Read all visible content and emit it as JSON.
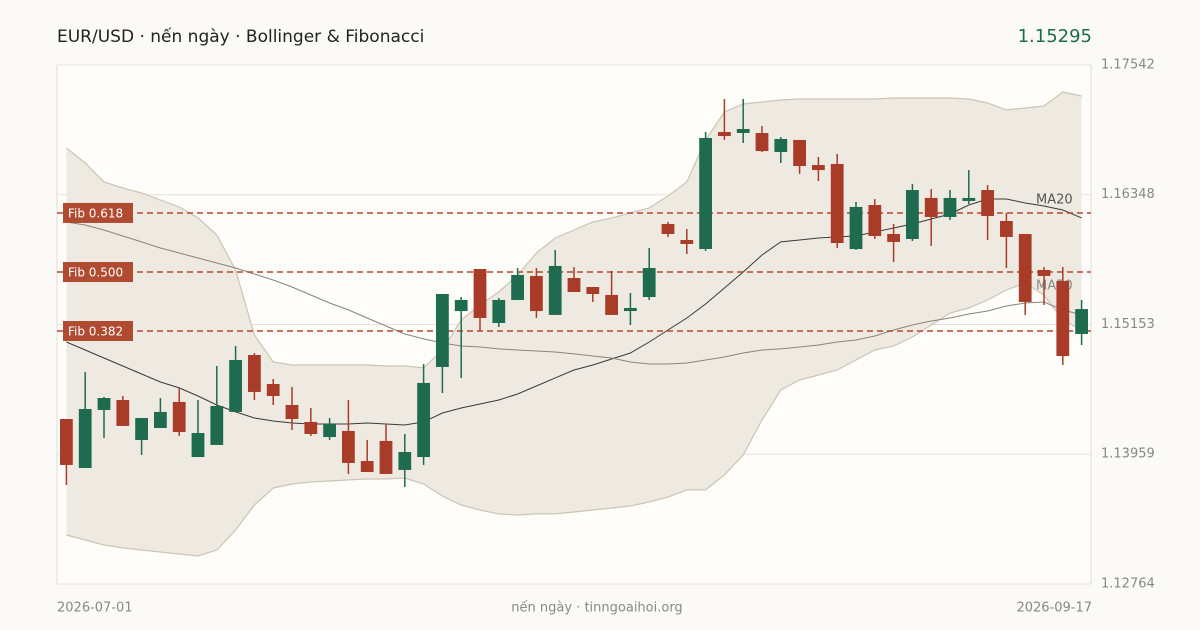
{
  "chart_data": {
    "type": "candlestick",
    "title": "EUR/USD · nến ngày · Bollinger & Fibonacci",
    "last_price": "1.15295",
    "source": "nến ngày · tinngoaihoi.org",
    "categories": [
      "2026-07-01",
      null,
      null,
      null,
      null,
      null,
      null,
      null,
      null,
      null,
      null,
      null,
      null,
      null,
      null,
      null,
      null,
      null,
      null,
      null,
      null,
      null,
      null,
      null,
      null,
      null,
      null,
      null,
      null,
      null,
      null,
      null,
      null,
      null,
      null,
      null,
      null,
      null,
      null,
      null,
      null,
      null,
      null,
      null,
      null,
      null,
      null,
      null,
      null,
      null,
      null,
      null,
      null,
      null,
      "2026-09-17"
    ],
    "open": [
      1.14283,
      1.13832,
      1.14366,
      1.14458,
      1.1409,
      1.142,
      1.1444,
      1.13933,
      1.14044,
      1.14348,
      1.14872,
      1.14605,
      1.14412,
      1.14256,
      1.14117,
      1.14173,
      1.13896,
      1.14081,
      1.13814,
      1.13933,
      1.14762,
      1.15277,
      1.15664,
      1.15167,
      1.15379,
      1.156,
      1.15241,
      1.15581,
      1.15498,
      1.15425,
      1.15277,
      1.15406,
      1.16078,
      1.15931,
      1.15848,
      1.16925,
      1.16916,
      1.16916,
      1.16741,
      1.16852,
      1.16621,
      1.16631,
      1.15848,
      1.16253,
      1.15986,
      1.1594,
      1.16318,
      1.16143,
      1.1629,
      1.16391,
      1.16106,
      1.15986,
      1.15655,
      1.15554,
      1.15066
    ],
    "high": [
      1.14283,
      1.14716,
      1.14486,
      1.14495,
      1.14292,
      1.14476,
      1.14569,
      1.14458,
      1.14771,
      1.14955,
      1.14891,
      1.14651,
      1.14578,
      1.14384,
      1.14292,
      1.14458,
      1.1409,
      1.14237,
      1.14145,
      1.14789,
      1.15434,
      1.15406,
      1.15664,
      1.15397,
      1.15673,
      1.15673,
      1.15839,
      1.15682,
      1.15498,
      1.15646,
      1.15443,
      1.15857,
      1.16097,
      1.16032,
      1.16925,
      1.17229,
      1.17229,
      1.1698,
      1.16879,
      1.16852,
      1.16695,
      1.16723,
      1.16281,
      1.16308,
      1.16078,
      1.16447,
      1.164,
      1.16391,
      1.16575,
      1.16437,
      1.1618,
      1.15986,
      1.15682,
      1.15682,
      1.15379
    ],
    "low": [
      1.13676,
      1.13832,
      1.14108,
      1.14219,
      1.13952,
      1.142,
      1.14127,
      1.13933,
      1.14044,
      1.14348,
      1.14458,
      1.14412,
      1.14182,
      1.14127,
      1.1409,
      1.13777,
      1.13795,
      1.13777,
      1.13657,
      1.1386,
      1.14522,
      1.1466,
      1.15093,
      1.1513,
      1.15379,
      1.15213,
      1.15241,
      1.15452,
      1.1536,
      1.15241,
      1.15148,
      1.15379,
      1.15959,
      1.15802,
      1.1583,
      1.16852,
      1.16824,
      1.16741,
      1.1664,
      1.16539,
      1.16474,
      1.15857,
      1.15839,
      1.1594,
      1.15728,
      1.15922,
      1.15876,
      1.16115,
      1.16262,
      1.15931,
      1.15673,
      1.15241,
      1.15333,
      1.1478,
      1.14964
    ],
    "close": [
      1.1386,
      1.14375,
      1.14476,
      1.14219,
      1.14292,
      1.14348,
      1.14163,
      1.14154,
      1.14403,
      1.14826,
      1.14532,
      1.14495,
      1.14283,
      1.14145,
      1.14237,
      1.13878,
      1.13795,
      1.13777,
      1.13979,
      1.14615,
      1.15434,
      1.15379,
      1.15213,
      1.15379,
      1.15609,
      1.15277,
      1.15692,
      1.15452,
      1.15434,
      1.15241,
      1.15305,
      1.15673,
      1.15986,
      1.15894,
      1.1687,
      1.16888,
      1.16953,
      1.1675,
      1.16861,
      1.16612,
      1.16575,
      1.15903,
      1.16235,
      1.15968,
      1.15913,
      1.16391,
      1.16143,
      1.16318,
      1.16318,
      1.16152,
      1.15959,
      1.1536,
      1.156,
      1.14863,
      1.15295
    ],
    "up_color": "#1e6b4f",
    "down_color": "#a83c28",
    "bollinger": {
      "fill": "#eeeae2",
      "color": "#cdc4b3",
      "upper": [
        1.16778,
        1.1664,
        1.16465,
        1.1641,
        1.16364,
        1.16299,
        1.16235,
        1.16134,
        1.15977,
        1.15655,
        1.15056,
        1.14808,
        1.1478,
        1.1478,
        1.1478,
        1.1478,
        1.1478,
        1.14771,
        1.14771,
        1.14753,
        1.14918,
        1.15195,
        1.15333,
        1.15452,
        1.15609,
        1.15811,
        1.15949,
        1.16023,
        1.16097,
        1.16134,
        1.1618,
        1.16226,
        1.16336,
        1.16465,
        1.16852,
        1.17109,
        1.17183,
        1.17201,
        1.1722,
        1.17229,
        1.17229,
        1.17229,
        1.17229,
        1.17229,
        1.17238,
        1.17238,
        1.17238,
        1.17238,
        1.17229,
        1.17192,
        1.17128,
        1.17146,
        1.17165,
        1.17293,
        1.17257
      ],
      "lower": [
        1.13215,
        1.13169,
        1.13123,
        1.13096,
        1.13077,
        1.13059,
        1.1304,
        1.13022,
        1.13077,
        1.13261,
        1.13491,
        1.13648,
        1.13685,
        1.13703,
        1.13712,
        1.13722,
        1.13731,
        1.13731,
        1.1374,
        1.13685,
        1.13574,
        1.13491,
        1.13445,
        1.13409,
        1.13399,
        1.13409,
        1.13409,
        1.13427,
        1.13445,
        1.13464,
        1.13482,
        1.13519,
        1.13565,
        1.1363,
        1.1363,
        1.13768,
        1.13952,
        1.14274,
        1.1455,
        1.14642,
        1.14688,
        1.14734,
        1.14826,
        1.14918,
        1.14955,
        1.15038,
        1.15148,
        1.15259,
        1.15305,
        1.15379,
        1.15471,
        1.15535,
        1.15425,
        1.15195,
        1.15102
      ]
    },
    "series": [
      {
        "name": "MA20",
        "color": "#3a3a3a",
        "values": [
          1.14992,
          1.14918,
          1.14845,
          1.14771,
          1.14697,
          1.14624,
          1.14569,
          1.14495,
          1.14412,
          1.14348,
          1.14292,
          1.14265,
          1.14246,
          1.14237,
          1.14237,
          1.14237,
          1.14246,
          1.14237,
          1.14228,
          1.14256,
          1.14338,
          1.14384,
          1.14421,
          1.14458,
          1.14513,
          1.14587,
          1.14661,
          1.14734,
          1.1478,
          1.14835,
          1.14891,
          1.14992,
          1.15102,
          1.15213,
          1.15342,
          1.15489,
          1.15636,
          1.15793,
          1.15913,
          1.15931,
          1.15949,
          1.15959,
          1.15968,
          1.16005,
          1.16041,
          1.16078,
          1.16124,
          1.1617,
          1.16253,
          1.16308,
          1.16308,
          1.16272,
          1.16244,
          1.16207,
          1.16134
        ]
      },
      {
        "name": "MA50",
        "color": "#8a857c",
        "values": [
          1.16097,
          1.16069,
          1.16023,
          1.15968,
          1.15913,
          1.15857,
          1.15811,
          1.15765,
          1.15719,
          1.15673,
          1.15618,
          1.15563,
          1.15498,
          1.15425,
          1.15351,
          1.15287,
          1.15213,
          1.15139,
          1.15066,
          1.1502,
          1.14983,
          1.14955,
          1.14946,
          1.14928,
          1.14918,
          1.14909,
          1.149,
          1.14882,
          1.14863,
          1.14845,
          1.14808,
          1.14789,
          1.14789,
          1.14799,
          1.14826,
          1.14854,
          1.14891,
          1.14918,
          1.14928,
          1.14946,
          1.14964,
          1.14992,
          1.1501,
          1.15047,
          1.15102,
          1.15148,
          1.15185,
          1.15213,
          1.1525,
          1.15277,
          1.15323,
          1.15351,
          1.1536,
          1.15287,
          1.15241
        ]
      }
    ],
    "fib_levels": [
      {
        "label": "Fib 0.618",
        "value": 1.1618
      },
      {
        "label": "Fib 0.500",
        "value": 1.15636
      },
      {
        "label": "Fib 0.382",
        "value": 1.15093
      }
    ],
    "fib_color": "#b04a30",
    "ylim": [
      1.12764,
      1.17542
    ],
    "yticks": [
      1.12764,
      1.13959,
      1.15153,
      1.16348,
      1.17542
    ],
    "grid": true
  }
}
